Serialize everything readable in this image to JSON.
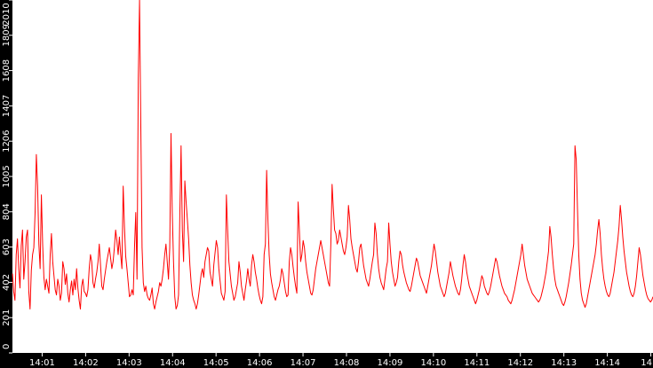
{
  "chart_data": {
    "type": "line",
    "title": "",
    "xlabel": "",
    "ylabel": "",
    "ylim": [
      0,
      2010
    ],
    "y_ticks": [
      "0",
      "201",
      "402",
      "603",
      "804",
      "1005",
      "1206",
      "1407",
      "1608",
      "1809",
      "2010"
    ],
    "x_ticks": [
      "14:01",
      "14:02",
      "14:03",
      "14:04",
      "14:05",
      "14:06",
      "14:07",
      "14:08",
      "14:09",
      "14:10",
      "14:11",
      "14:12",
      "14:13",
      "14:14",
      "14"
    ],
    "x_start": "14:00:19",
    "x_end": "14:15:03",
    "grid": false,
    "legend": "none",
    "line_color": "#ff0000",
    "axis_color": "#000000",
    "tick_text_color": "#ffffff",
    "series": [
      {
        "values": [
          452,
          350,
          300,
          560,
          650,
          480,
          370,
          610,
          700,
          420,
          520,
          660,
          700,
          350,
          250,
          470,
          560,
          600,
          800,
          1130,
          950,
          620,
          480,
          900,
          620,
          430,
          360,
          420,
          380,
          340,
          560,
          680,
          520,
          440,
          360,
          330,
          420,
          380,
          300,
          340,
          520,
          480,
          390,
          450,
          340,
          290,
          360,
          410,
          330,
          420,
          360,
          480,
          370,
          300,
          250,
          380,
          420,
          350,
          340,
          320,
          360,
          480,
          560,
          520,
          400,
          370,
          420,
          460,
          520,
          620,
          500,
          380,
          360,
          420,
          470,
          520,
          560,
          600,
          540,
          480,
          520,
          600,
          700,
          640,
          560,
          660,
          560,
          480,
          950,
          720,
          550,
          480,
          400,
          320,
          330,
          360,
          330,
          600,
          800,
          420,
          1560,
          2010,
          1300,
          600,
          400,
          350,
          380,
          330,
          310,
          300,
          330,
          370,
          280,
          250,
          290,
          320,
          350,
          400,
          380,
          420,
          480,
          560,
          620,
          520,
          420,
          600,
          1250,
          800,
          520,
          320,
          250,
          270,
          330,
          780,
          1180,
          700,
          520,
          980,
          860,
          760,
          650,
          500,
          400,
          330,
          300,
          280,
          250,
          280,
          330,
          390,
          450,
          480,
          430,
          520,
          560,
          600,
          580,
          460,
          420,
          380,
          500,
          570,
          640,
          600,
          480,
          410,
          340,
          320,
          300,
          350,
          900,
          700,
          520,
          450,
          380,
          340,
          300,
          320,
          360,
          400,
          520,
          460,
          380,
          340,
          300,
          360,
          410,
          480,
          420,
          380,
          500,
          560,
          520,
          460,
          420,
          370,
          330,
          300,
          280,
          320,
          560,
          620,
          1040,
          760,
          560,
          450,
          400,
          360,
          320,
          300,
          330,
          360,
          380,
          420,
          480,
          450,
          400,
          350,
          320,
          330,
          520,
          600,
          560,
          490,
          430,
          380,
          340,
          860,
          700,
          520,
          560,
          640,
          600,
          520,
          460,
          420,
          380,
          340,
          330,
          360,
          420,
          480,
          520,
          560,
          600,
          640,
          600,
          560,
          520,
          480,
          440,
          400,
          380,
          620,
          960,
          820,
          700,
          680,
          620,
          640,
          700,
          660,
          620,
          580,
          560,
          600,
          660,
          840,
          760,
          650,
          600,
          560,
          520,
          480,
          460,
          520,
          600,
          620,
          560,
          500,
          460,
          420,
          400,
          380,
          420,
          470,
          520,
          560,
          740,
          680,
          560,
          480,
          430,
          400,
          380,
          360,
          420,
          480,
          520,
          740,
          620,
          520,
          460,
          420,
          380,
          400,
          430,
          520,
          580,
          560,
          500,
          460,
          430,
          400,
          380,
          360,
          350,
          380,
          420,
          460,
          500,
          540,
          520,
          480,
          440,
          420,
          400,
          380,
          360,
          340,
          380,
          420,
          460,
          500,
          560,
          620,
          580,
          520,
          460,
          420,
          380,
          360,
          340,
          320,
          340,
          380,
          420,
          460,
          520,
          480,
          440,
          410,
          380,
          360,
          340,
          330,
          360,
          420,
          500,
          560,
          520,
          460,
          420,
          380,
          360,
          340,
          320,
          300,
          280,
          300,
          330,
          360,
          400,
          440,
          420,
          380,
          360,
          340,
          330,
          350,
          380,
          420,
          460,
          500,
          540,
          520,
          480,
          440,
          410,
          380,
          360,
          340,
          330,
          320,
          300,
          290,
          280,
          300,
          330,
          360,
          400,
          440,
          480,
          520,
          560,
          620,
          560,
          500,
          460,
          420,
          400,
          380,
          360,
          340,
          330,
          320,
          310,
          300,
          290,
          300,
          320,
          350,
          380,
          420,
          460,
          520,
          580,
          720,
          660,
          560,
          480,
          420,
          380,
          360,
          340,
          320,
          300,
          280,
          270,
          290,
          320,
          360,
          400,
          450,
          500,
          560,
          620,
          1180,
          1100,
          820,
          560,
          420,
          340,
          300,
          280,
          260,
          280,
          320,
          360,
          400,
          440,
          480,
          520,
          560,
          620,
          700,
          760,
          680,
          560,
          480,
          420,
          380,
          350,
          330,
          320,
          340,
          380,
          420,
          460,
          520,
          580,
          640,
          720,
          840,
          760,
          660,
          580,
          520,
          460,
          420,
          380,
          350,
          330,
          320,
          340,
          380,
          440,
          520,
          600,
          560,
          500,
          440,
          400,
          360,
          330,
          310,
          300,
          290,
          300,
          320
        ]
      }
    ]
  }
}
